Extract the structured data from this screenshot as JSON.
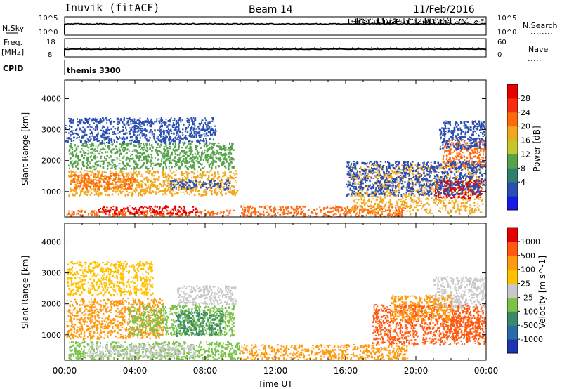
{
  "header": {
    "station": "Inuvik (fitACF)",
    "beam": "Beam 14",
    "date": "11/Feb/2016"
  },
  "status_panels": {
    "nsky_label": "N.Sky",
    "nsky_ticks": [
      "10^5",
      "10^0"
    ],
    "nsearch_label": "N.Search",
    "nsearch_ticks": [
      "10^5",
      "10^0"
    ],
    "freq_label_1": "Freq.",
    "freq_label_2": "[MHz]",
    "freq_ticks": [
      "18",
      "8"
    ],
    "nave_label": "Nave",
    "nave_ticks": [
      "60",
      "0"
    ],
    "cpid_label": "CPID",
    "cpid_value": "themis 3300"
  },
  "chart_data": [
    {
      "type": "heatmap",
      "quantity": "Power",
      "ylabel": "Slant Range [km]",
      "xlabel": "Time UT",
      "x_ticks": [
        "00:00",
        "04:00",
        "08:00",
        "12:00",
        "16:00",
        "20:00",
        "00:00"
      ],
      "x_range_hours": [
        0,
        24
      ],
      "y_ticks": [
        1000,
        2000,
        3000,
        4000
      ],
      "ylim": [
        180,
        4600
      ],
      "colorbar": {
        "label": "Power [dB]",
        "ticks": [
          "28",
          "24",
          "20",
          "16",
          "12",
          "8",
          "4"
        ],
        "colors": [
          "#1a1ae6",
          "#2a4fb0",
          "#2f7f6e",
          "#55a24a",
          "#c4c62d",
          "#f0a81e",
          "#ff6a10",
          "#f42e0e",
          "#e60000"
        ]
      },
      "regions": [
        {
          "t0": 0.1,
          "t1": 9.6,
          "r0": 240,
          "r1": 420,
          "color": "#ff6a10"
        },
        {
          "t0": 1.9,
          "t1": 7.6,
          "r0": 300,
          "r1": 560,
          "color": "#e60000"
        },
        {
          "t0": 0.2,
          "t1": 9.8,
          "r0": 900,
          "r1": 1700,
          "color": "#f0a81e"
        },
        {
          "t0": 0.3,
          "t1": 4.0,
          "r0": 1100,
          "r1": 1600,
          "color": "#ff6a10"
        },
        {
          "t0": 0.2,
          "t1": 9.6,
          "r0": 1750,
          "r1": 2600,
          "color": "#55a24a"
        },
        {
          "t0": 6.0,
          "t1": 9.4,
          "r0": 1100,
          "r1": 1400,
          "color": "#2a4fb0"
        },
        {
          "t0": 0.0,
          "t1": 8.6,
          "r0": 2600,
          "r1": 3400,
          "color": "#2a4fb0"
        },
        {
          "t0": 10.0,
          "t1": 19.5,
          "r0": 200,
          "r1": 560,
          "color": "#ff6a10"
        },
        {
          "t0": 16.2,
          "t1": 23.8,
          "r0": 300,
          "r1": 1900,
          "color": "#f0a81e"
        },
        {
          "t0": 21.0,
          "t1": 23.8,
          "r0": 800,
          "r1": 1400,
          "color": "#e60000"
        },
        {
          "t0": 21.5,
          "t1": 24.0,
          "r0": 1800,
          "r1": 2700,
          "color": "#ff6a10"
        },
        {
          "t0": 21.3,
          "t1": 24.0,
          "r0": 2400,
          "r1": 3300,
          "color": "#2a4fb0"
        },
        {
          "t0": 16.0,
          "t1": 24.0,
          "r0": 900,
          "r1": 2000,
          "color": "#2a4fb0"
        }
      ]
    },
    {
      "type": "heatmap",
      "quantity": "Velocity",
      "ylabel": "Slant Range [km]",
      "xlabel": "Time UT",
      "x_ticks": [
        "00:00",
        "04:00",
        "08:00",
        "12:00",
        "16:00",
        "20:00",
        "00:00"
      ],
      "x_range_hours": [
        0,
        24
      ],
      "y_ticks": [
        1000,
        2000,
        3000,
        4000
      ],
      "ylim": [
        180,
        4600
      ],
      "colorbar": {
        "label": "Velocity [m s^-1]",
        "ticks": [
          "1000",
          "500",
          "100",
          "25",
          "-25",
          "-100",
          "-500",
          "-1000"
        ],
        "colors": [
          "#1f35b0",
          "#2a6aa8",
          "#3a8a6a",
          "#7cc24a",
          "#c8c8c8",
          "#ffc000",
          "#ff9a10",
          "#ff5a10",
          "#e60000"
        ]
      },
      "regions": [
        {
          "t0": 0.1,
          "t1": 5.6,
          "r0": 900,
          "r1": 2200,
          "color": "#ff9a10"
        },
        {
          "t0": 0.1,
          "t1": 5.0,
          "r0": 2300,
          "r1": 3400,
          "color": "#ffc000"
        },
        {
          "t0": 3.6,
          "t1": 9.6,
          "r0": 1000,
          "r1": 2000,
          "color": "#7cc24a"
        },
        {
          "t0": 6.3,
          "t1": 9.0,
          "r0": 1000,
          "r1": 1800,
          "color": "#3a8a6a"
        },
        {
          "t0": 6.4,
          "t1": 9.7,
          "r0": 2000,
          "r1": 2600,
          "color": "#c8c8c8"
        },
        {
          "t0": 0.2,
          "t1": 10.0,
          "r0": 200,
          "r1": 800,
          "color": "#7cc24a"
        },
        {
          "t0": 1.2,
          "t1": 7.4,
          "r0": 300,
          "r1": 700,
          "color": "#c8c8c8"
        },
        {
          "t0": 10.0,
          "t1": 19.5,
          "r0": 200,
          "r1": 700,
          "color": "#ff9a10"
        },
        {
          "t0": 17.5,
          "t1": 24.0,
          "r0": 700,
          "r1": 2000,
          "color": "#ff5a10"
        },
        {
          "t0": 21.0,
          "t1": 24.0,
          "r0": 1900,
          "r1": 2900,
          "color": "#c8c8c8"
        },
        {
          "t0": 21.5,
          "t1": 24.0,
          "r0": 900,
          "r1": 1600,
          "color": "#ff5a10"
        },
        {
          "t0": 18.5,
          "t1": 22.0,
          "r0": 1500,
          "r1": 2300,
          "color": "#ff9a10"
        }
      ]
    }
  ]
}
